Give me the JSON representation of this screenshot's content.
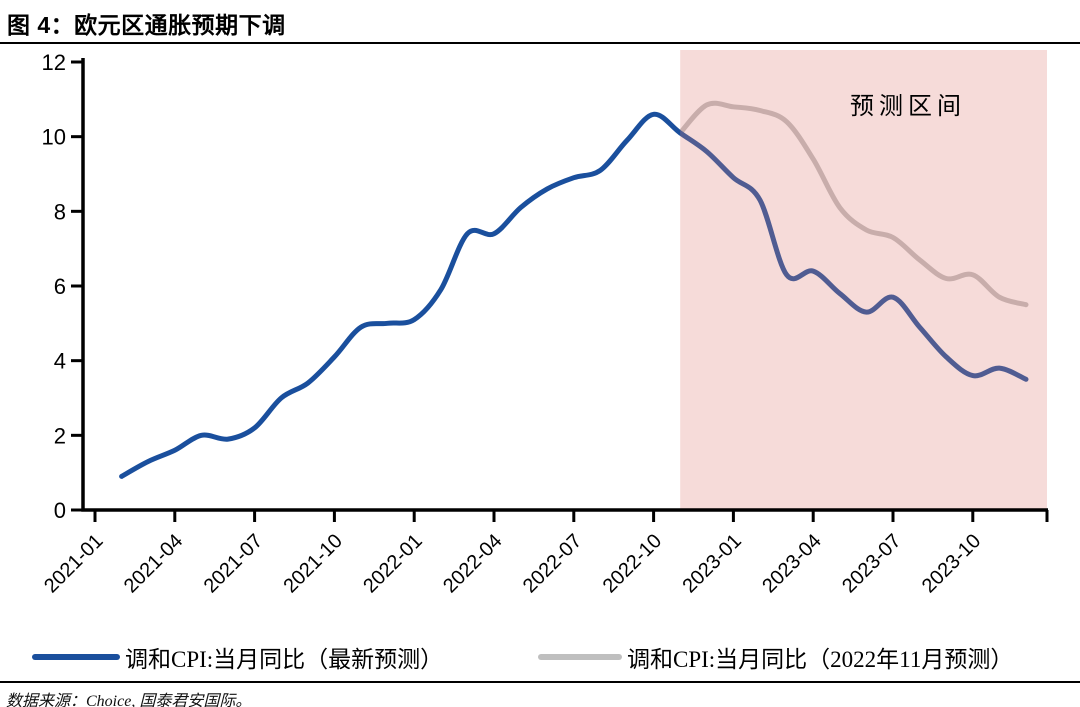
{
  "figure": {
    "title": "图 4：欧元区通胀预期下调",
    "source_note": "数据来源：Choice, 国泰君安国际。"
  },
  "legend": {
    "items": [
      {
        "label": "调和CPI:当月同比（最新预测）",
        "color": "#1a4f9d"
      },
      {
        "label": "调和CPI:当月同比（2022年11月预测）",
        "color": "#bfbfbf"
      }
    ]
  },
  "chart_data": {
    "type": "line",
    "title": "图 4：欧元区通胀预期下调",
    "xlabel": "",
    "ylabel": "",
    "ylim": [
      0,
      12
    ],
    "yticks": [
      0,
      2,
      4,
      6,
      8,
      10,
      12
    ],
    "x_tick_labels": [
      "2021-01",
      "2021-04",
      "2021-07",
      "2021-10",
      "2022-01",
      "2022-04",
      "2022-07",
      "2022-10",
      "2023-01",
      "2023-04",
      "2023-07",
      "2023-10"
    ],
    "grid": false,
    "legend_position": "bottom",
    "forecast_region": {
      "label": "预测区间",
      "start_month": "2022-11",
      "end": "axis-end",
      "overlay_fill": "rgba(223,127,119,0.28)",
      "approx_solid_fill": "#f7dfdd"
    },
    "series": [
      {
        "name": "调和CPI:当月同比（最新预测）",
        "color": "#1a4f9d",
        "start_month": "2021-02",
        "cadence": "monthly",
        "values": [
          0.9,
          1.3,
          1.6,
          2.0,
          1.9,
          2.2,
          3.0,
          3.4,
          4.1,
          4.9,
          5.0,
          5.1,
          5.9,
          7.4,
          7.4,
          8.1,
          8.6,
          8.9,
          9.1,
          9.9,
          10.6,
          10.1,
          9.6,
          8.9,
          8.3,
          6.3,
          6.4,
          5.8,
          5.3,
          5.7,
          4.9,
          4.1,
          3.6,
          3.8,
          3.5
        ]
      },
      {
        "name": "调和CPI:当月同比（2022年11月预测）",
        "color": "#bfbfbf",
        "start_month": "2022-11",
        "cadence": "monthly",
        "values": [
          10.1,
          10.85,
          10.8,
          10.7,
          10.4,
          9.4,
          8.1,
          7.5,
          7.3,
          6.7,
          6.2,
          6.3,
          5.7,
          5.5
        ]
      }
    ]
  }
}
